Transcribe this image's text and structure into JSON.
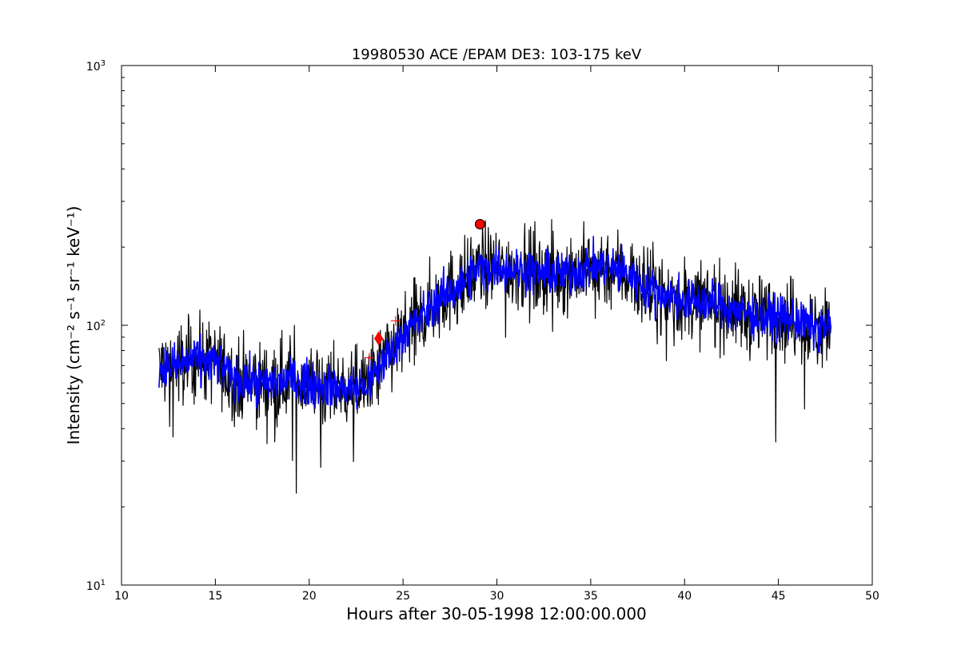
{
  "chart_data": {
    "type": "line",
    "title": "19980530 ACE /EPAM DE3: 103-175 keV",
    "xlabel": "Hours after 30-05-1998 12:00:00.000",
    "ylabel": "Intensity (cm⁻² s⁻¹ sr⁻¹ keV⁻¹)",
    "xlim": [
      10,
      50
    ],
    "ylim": [
      10,
      1000
    ],
    "yscale": "log",
    "grid": false,
    "xticks": [
      10,
      15,
      20,
      25,
      30,
      35,
      40,
      45,
      50
    ],
    "yticks": [
      10,
      100,
      1000
    ],
    "ytick_labels": {
      "base": "10",
      "exponents": [
        "1",
        "2",
        "3"
      ]
    },
    "colors": {
      "raw": "#000000",
      "smoothed": "#0000ff",
      "markers": "#ff0000"
    },
    "series": [
      {
        "style": "raw-black-line",
        "color": "#000000",
        "x": [
          12.0,
          13.0,
          14.0,
          15.0,
          16.0,
          17.0,
          18.0,
          19.0,
          20.0,
          21.0,
          22.0,
          23.0,
          23.7,
          24.5,
          25.0,
          26.0,
          27.0,
          28.0,
          29.0,
          30.0,
          31.0,
          32.0,
          33.0,
          34.0,
          35.0,
          36.0,
          37.0,
          38.0,
          39.0,
          40.0,
          41.0,
          42.0,
          43.0,
          44.0,
          45.0,
          46.0,
          47.0,
          47.8
        ],
        "y": [
          68,
          70,
          74,
          72,
          62,
          60,
          60,
          62,
          60,
          58,
          57,
          58,
          68,
          82,
          92,
          108,
          128,
          142,
          165,
          168,
          165,
          160,
          158,
          160,
          168,
          168,
          158,
          140,
          130,
          125,
          122,
          120,
          112,
          108,
          108,
          104,
          96,
          100
        ],
        "spread": 0.35
      },
      {
        "style": "smoothed-blue-line",
        "color": "#0000ff",
        "x": [
          12.0,
          13.0,
          14.0,
          15.0,
          16.0,
          17.0,
          18.0,
          19.0,
          20.0,
          21.0,
          22.0,
          23.0,
          23.7,
          24.5,
          25.0,
          26.0,
          27.0,
          28.0,
          29.0,
          30.0,
          31.0,
          32.0,
          33.0,
          34.0,
          35.0,
          36.0,
          37.0,
          38.0,
          39.0,
          40.0,
          41.0,
          42.0,
          43.0,
          44.0,
          45.0,
          46.0,
          47.0,
          47.8
        ],
        "y": [
          68,
          70,
          74,
          72,
          62,
          60,
          60,
          62,
          60,
          58,
          57,
          58,
          68,
          82,
          92,
          108,
          128,
          142,
          165,
          168,
          165,
          160,
          158,
          160,
          168,
          168,
          158,
          140,
          130,
          125,
          122,
          120,
          112,
          108,
          108,
          104,
          96,
          100
        ],
        "spread": 0.18
      }
    ],
    "markers": [
      {
        "shape": "diamond",
        "x": 23.7,
        "y": 89,
        "color": "#ff0000"
      },
      {
        "shape": "circle",
        "x": 29.1,
        "y": 245,
        "color": "#ff0000"
      },
      {
        "shape": "plus",
        "x": 24.6,
        "y": 104,
        "color": "#ff0000"
      },
      {
        "shape": "plus",
        "x": 23.2,
        "y": 75,
        "color": "#ff0000"
      }
    ]
  }
}
